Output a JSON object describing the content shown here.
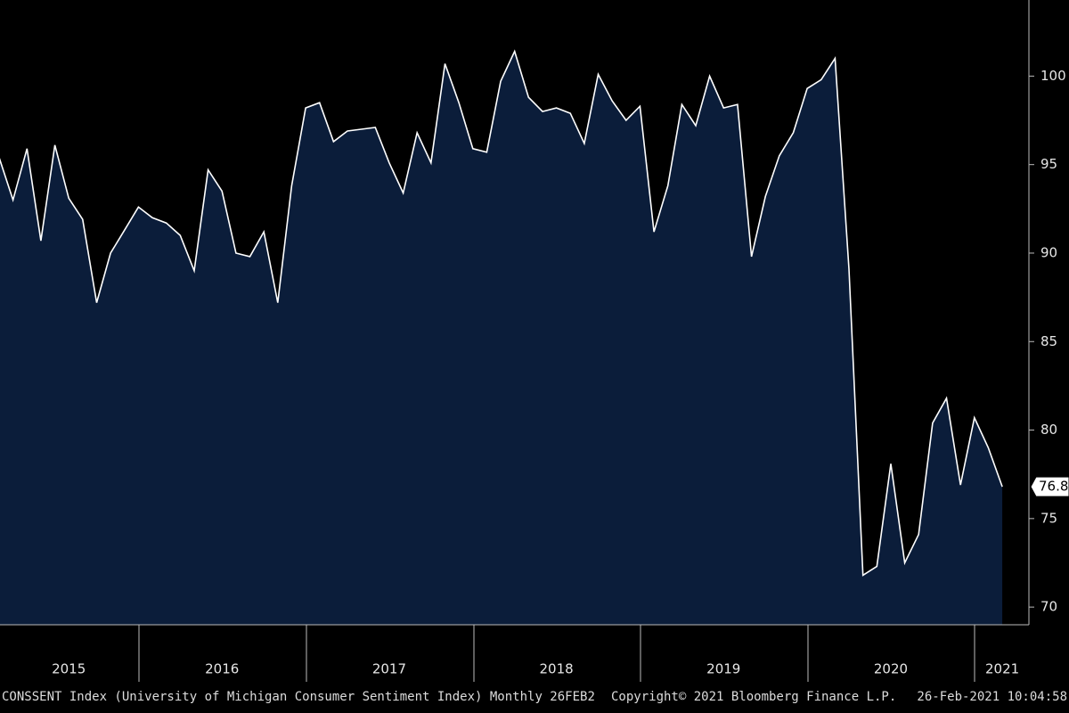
{
  "chart_data": {
    "type": "area",
    "categories": [
      null,
      null,
      null,
      null,
      null,
      "2015",
      null,
      null,
      null,
      null,
      null,
      null,
      null,
      null,
      null,
      null,
      "2016",
      null,
      null,
      null,
      null,
      null,
      null,
      null,
      null,
      null,
      null,
      null,
      "2017",
      null,
      null,
      null,
      null,
      null,
      null,
      null,
      null,
      null,
      null,
      null,
      "2018",
      null,
      null,
      null,
      null,
      null,
      null,
      null,
      null,
      null,
      null,
      null,
      "2019",
      null,
      null,
      null,
      null,
      null,
      null,
      null,
      null,
      null,
      null,
      null,
      "2020",
      null,
      null,
      null,
      null,
      null,
      null,
      null,
      "2021"
    ],
    "series": [
      {
        "name": "CONSSENT Index",
        "color": "#ffffff",
        "fill": "#0b1d3a",
        "values": [
          95.4,
          93.0,
          95.9,
          90.7,
          96.1,
          93.1,
          91.9,
          87.2,
          90.0,
          91.3,
          92.6,
          92.0,
          91.7,
          91.0,
          89.0,
          94.7,
          93.5,
          90.0,
          89.8,
          91.2,
          87.2,
          93.8,
          98.2,
          98.5,
          96.3,
          96.9,
          97.0,
          97.1,
          95.1,
          93.4,
          96.8,
          95.1,
          100.7,
          98.5,
          95.9,
          95.7,
          99.7,
          101.4,
          98.8,
          98.0,
          98.2,
          97.9,
          96.2,
          100.1,
          98.6,
          97.5,
          98.3,
          91.2,
          93.8,
          98.4,
          97.2,
          100.0,
          98.2,
          98.4,
          89.8,
          93.2,
          95.5,
          96.8,
          99.3,
          99.8,
          101.0,
          89.1,
          71.8,
          72.3,
          78.1,
          72.5,
          74.1,
          80.4,
          81.8,
          76.9,
          80.7,
          79.0,
          76.8
        ]
      }
    ],
    "ylim": [
      69,
      104.3
    ],
    "yticks": [
      70,
      75,
      80,
      85,
      90,
      95,
      100
    ],
    "footer": [
      "CONSSENT Index (University of Michigan Consumer Sentiment Index)  Monthly 26FEB2",
      "Copyright© 2021 Bloomberg Finance L.P.",
      "26-Feb-2021 10:04:58"
    ]
  }
}
